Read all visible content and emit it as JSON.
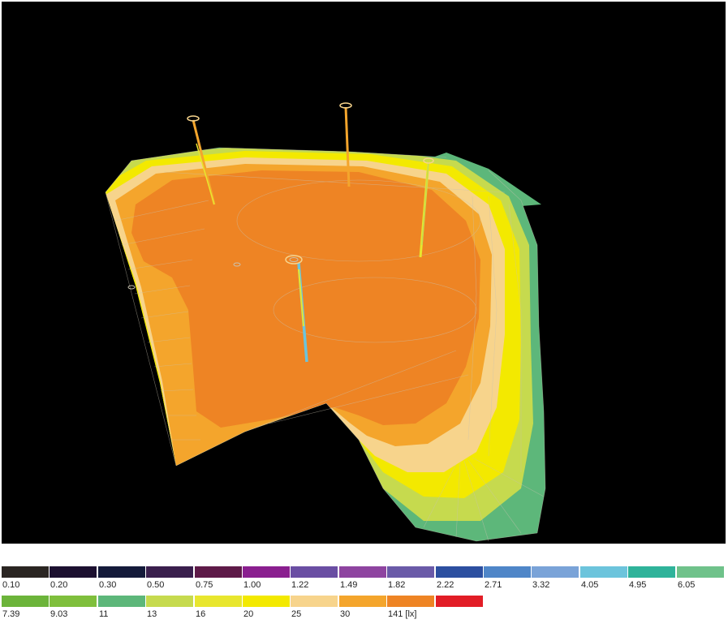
{
  "legend": {
    "unit": "[lx]",
    "rows": [
      [
        {
          "label": "0.10",
          "color": "#2a2522"
        },
        {
          "label": "0.20",
          "color": "#1c1030"
        },
        {
          "label": "0.30",
          "color": "#141a3a"
        },
        {
          "label": "0.50",
          "color": "#3a1f4d"
        },
        {
          "label": "0.75",
          "color": "#5e1a48"
        },
        {
          "label": "1.00",
          "color": "#8a1f8f"
        },
        {
          "label": "1.22",
          "color": "#6a4ea3"
        },
        {
          "label": "1.49",
          "color": "#8e44a0"
        },
        {
          "label": "1.82",
          "color": "#6a5aa8"
        },
        {
          "label": "2.22",
          "color": "#2c4fa0"
        },
        {
          "label": "2.71",
          "color": "#4f86c8"
        },
        {
          "label": "3.32",
          "color": "#7aa3d8"
        },
        {
          "label": "4.05",
          "color": "#6cc4dc"
        },
        {
          "label": "4.95",
          "color": "#2fb39a"
        },
        {
          "label": "6.05",
          "color": "#6fc28a"
        }
      ],
      [
        {
          "label": "7.39",
          "color": "#6cb43a"
        },
        {
          "label": "9.03",
          "color": "#7fbf3c"
        },
        {
          "label": "11",
          "color": "#5db77a"
        },
        {
          "label": "13",
          "color": "#c6da4e"
        },
        {
          "label": "16",
          "color": "#e8e62e"
        },
        {
          "label": "20",
          "color": "#f3e900"
        },
        {
          "label": "25",
          "color": "#f7d48c"
        },
        {
          "label": "30",
          "color": "#f4a52c"
        },
        {
          "label": "141 [lx]",
          "color": "#ee8424"
        },
        {
          "label": "",
          "color": "#e21d26"
        }
      ]
    ]
  },
  "scene": {
    "background": "#000000",
    "surface_colors": {
      "max": "#ee8424",
      "level_30": "#f4a52c",
      "level_25": "#f7d48c",
      "level_20": "#f3e900",
      "level_16": "#e8e62e",
      "level_13": "#c6da4e",
      "level_11": "#5db77a"
    }
  }
}
